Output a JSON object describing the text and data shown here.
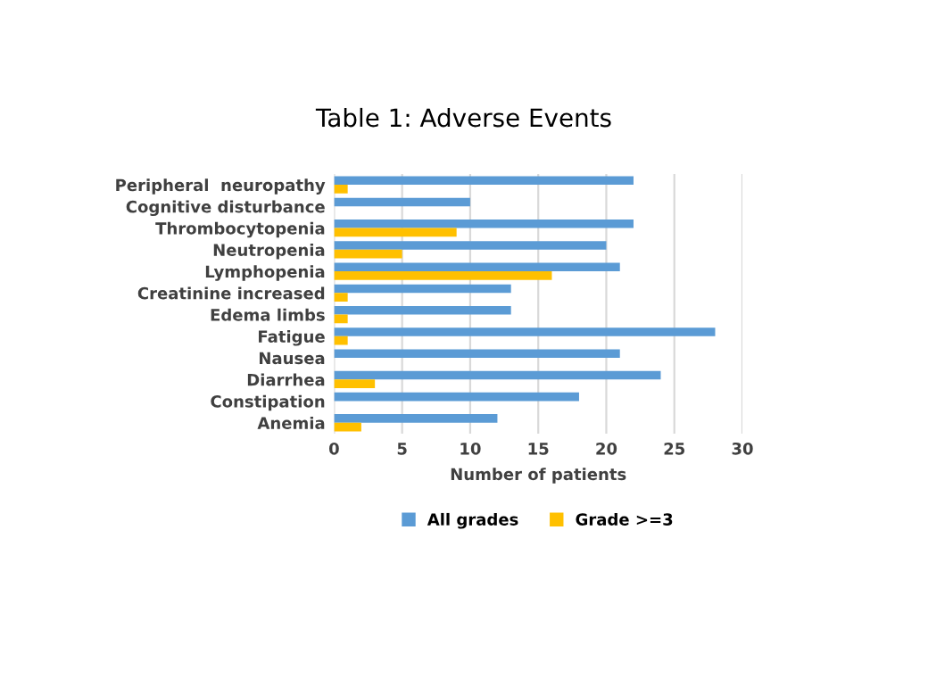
{
  "chart_data": {
    "type": "bar",
    "orientation": "horizontal",
    "title": "Table 1: Adverse Events",
    "xlabel": "Number of patients",
    "categories": [
      "Peripheral  neuropathy",
      "Cognitive disturbance",
      "Thrombocytopenia",
      "Neutropenia",
      "Lymphopenia",
      "Creatinine increased",
      "Edema limbs",
      "Fatigue",
      "Nausea",
      "Diarrhea",
      "Constipation",
      "Anemia"
    ],
    "series": [
      {
        "name": "All grades",
        "color": "#5b9bd5",
        "values": [
          22,
          10,
          22,
          20,
          21,
          13,
          13,
          28,
          21,
          24,
          18,
          12
        ]
      },
      {
        "name": "Grade >=3",
        "color": "#ffc000",
        "values": [
          1,
          0,
          9,
          5,
          16,
          1,
          1,
          1,
          0,
          3,
          0,
          2
        ]
      }
    ],
    "xlim": [
      0,
      30
    ],
    "xticks": [
      0,
      5,
      10,
      15,
      20,
      25,
      30
    ],
    "grid": "x",
    "legend": "bottom"
  }
}
